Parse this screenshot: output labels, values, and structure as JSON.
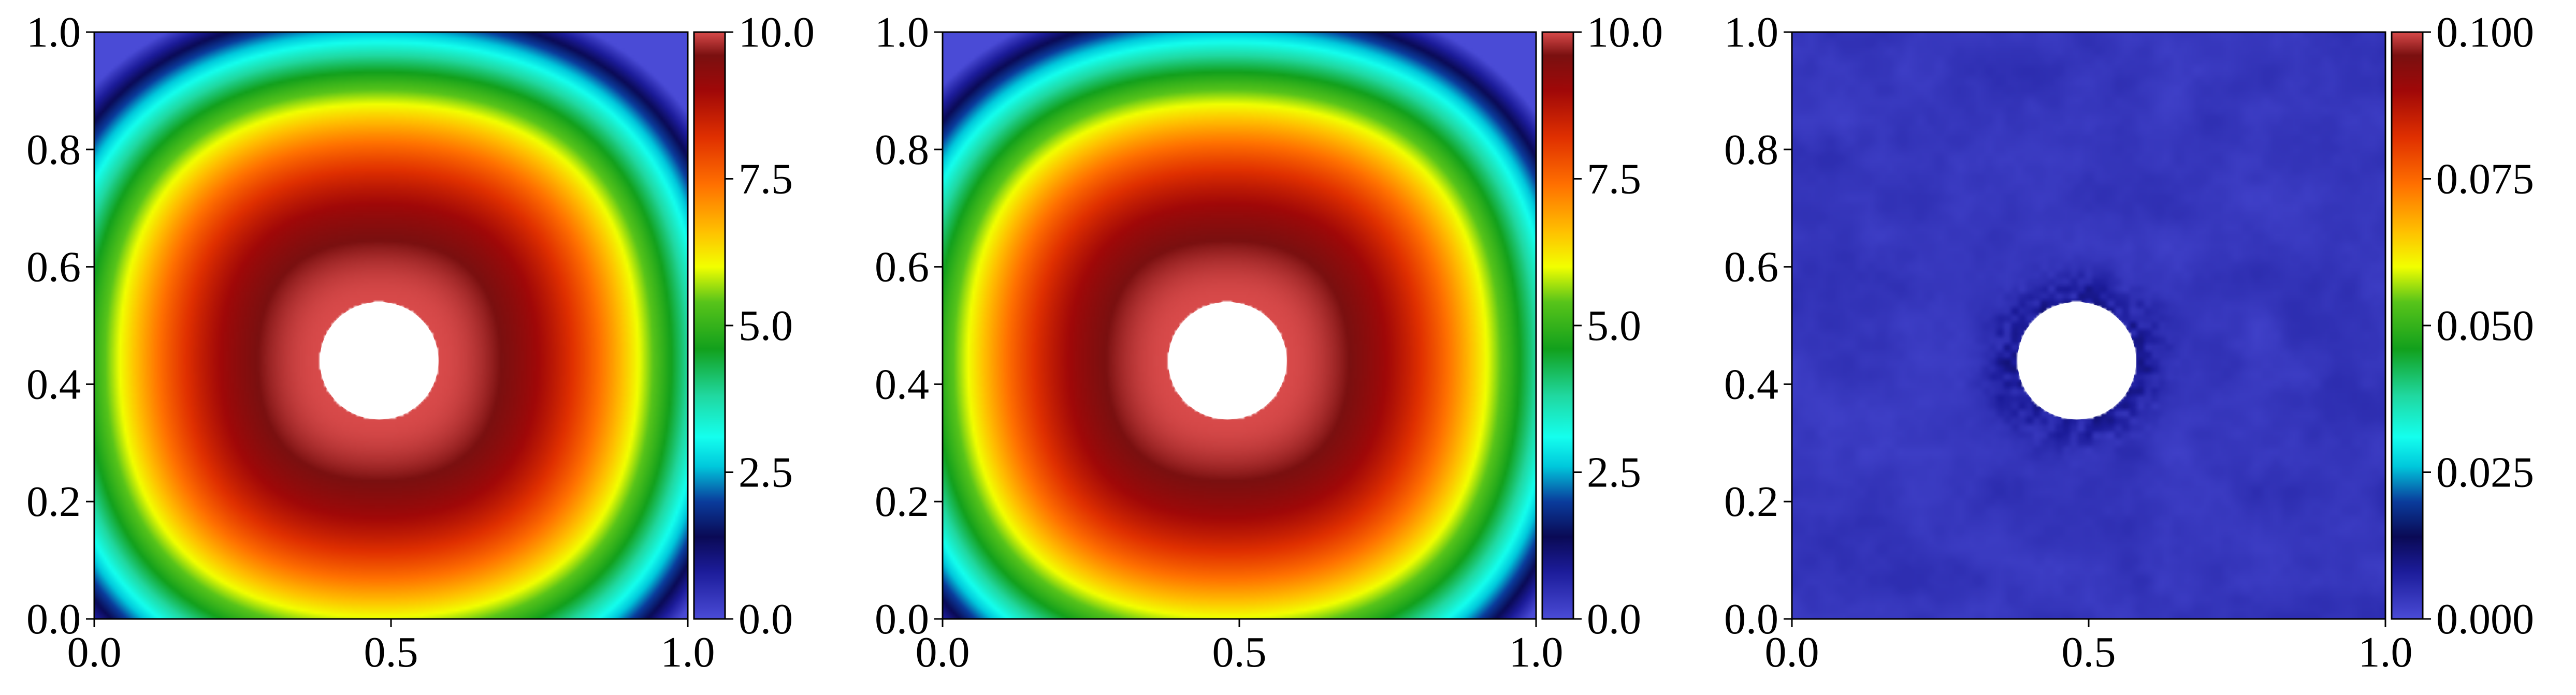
{
  "chart_data": [
    {
      "type": "heatmap",
      "title": "",
      "xlabel": "",
      "ylabel": "",
      "xlim": [
        0.0,
        1.0
      ],
      "ylim": [
        0.0,
        1.0
      ],
      "x_ticks": [
        "0.0",
        "0.5",
        "1.0"
      ],
      "y_ticks": [
        "0.0",
        "0.2",
        "0.4",
        "0.6",
        "0.8",
        "1.0"
      ],
      "field": {
        "kind": "annular_ring",
        "center": [
          0.48,
          0.44
        ],
        "hole_radius": 0.1,
        "ring_radius": 0.1,
        "ring_width": 0.55,
        "peak": 10.0,
        "background": 0.0,
        "shape_power": 3
      },
      "colorbar": {
        "min": 0.0,
        "max": 10.0,
        "ticks": [
          0.0,
          2.5,
          5.0,
          7.5,
          10.0
        ],
        "tick_labels": [
          "0.0",
          "2.5",
          "5.0",
          "7.5",
          "10.0"
        ]
      },
      "grid": false,
      "legend": "none"
    },
    {
      "type": "heatmap",
      "title": "",
      "xlabel": "",
      "ylabel": "",
      "xlim": [
        0.0,
        1.0
      ],
      "ylim": [
        0.0,
        1.0
      ],
      "x_ticks": [
        "0.0",
        "0.5",
        "1.0"
      ],
      "y_ticks": [
        "0.0",
        "0.2",
        "0.4",
        "0.6",
        "0.8",
        "1.0"
      ],
      "field": {
        "kind": "annular_ring",
        "center": [
          0.48,
          0.44
        ],
        "hole_radius": 0.1,
        "ring_radius": 0.1,
        "ring_width": 0.55,
        "peak": 10.0,
        "background": 0.0,
        "shape_power": 3
      },
      "colorbar": {
        "min": 0.0,
        "max": 10.0,
        "ticks": [
          0.0,
          2.5,
          5.0,
          7.5,
          10.0
        ],
        "tick_labels": [
          "0.0",
          "2.5",
          "5.0",
          "7.5",
          "10.0"
        ]
      },
      "grid": false,
      "legend": "none"
    },
    {
      "type": "heatmap",
      "title": "",
      "xlabel": "",
      "ylabel": "",
      "xlim": [
        0.0,
        1.0
      ],
      "ylim": [
        0.0,
        1.0
      ],
      "x_ticks": [
        "0.0",
        "0.5",
        "1.0"
      ],
      "y_ticks": [
        "0.0",
        "0.2",
        "0.4",
        "0.6",
        "0.8",
        "1.0"
      ],
      "field": {
        "kind": "noise",
        "center": [
          0.48,
          0.44
        ],
        "hole_radius": 0.1,
        "typical_value": 0.004,
        "max_value": 0.012
      },
      "colorbar": {
        "min": 0.0,
        "max": 0.1,
        "ticks": [
          0.0,
          0.025,
          0.05,
          0.075,
          0.1
        ],
        "tick_labels": [
          "0.000",
          "0.025",
          "0.050",
          "0.075",
          "0.100"
        ]
      },
      "grid": false,
      "legend": "none"
    }
  ],
  "colormap": {
    "name": "turbo-like",
    "stops": [
      [
        0.0,
        "#4a4bd6"
      ],
      [
        0.08,
        "#1c1c9a"
      ],
      [
        0.14,
        "#0a0a55"
      ],
      [
        0.2,
        "#0a3c9c"
      ],
      [
        0.26,
        "#00c8dc"
      ],
      [
        0.31,
        "#14ffee"
      ],
      [
        0.38,
        "#20d8a0"
      ],
      [
        0.46,
        "#12a01c"
      ],
      [
        0.54,
        "#58c41a"
      ],
      [
        0.6,
        "#f2ff00"
      ],
      [
        0.66,
        "#ffc000"
      ],
      [
        0.74,
        "#ff7000"
      ],
      [
        0.82,
        "#e03000"
      ],
      [
        0.9,
        "#a00808"
      ],
      [
        0.96,
        "#7a1010"
      ],
      [
        1.0,
        "#d84a4a"
      ]
    ]
  }
}
